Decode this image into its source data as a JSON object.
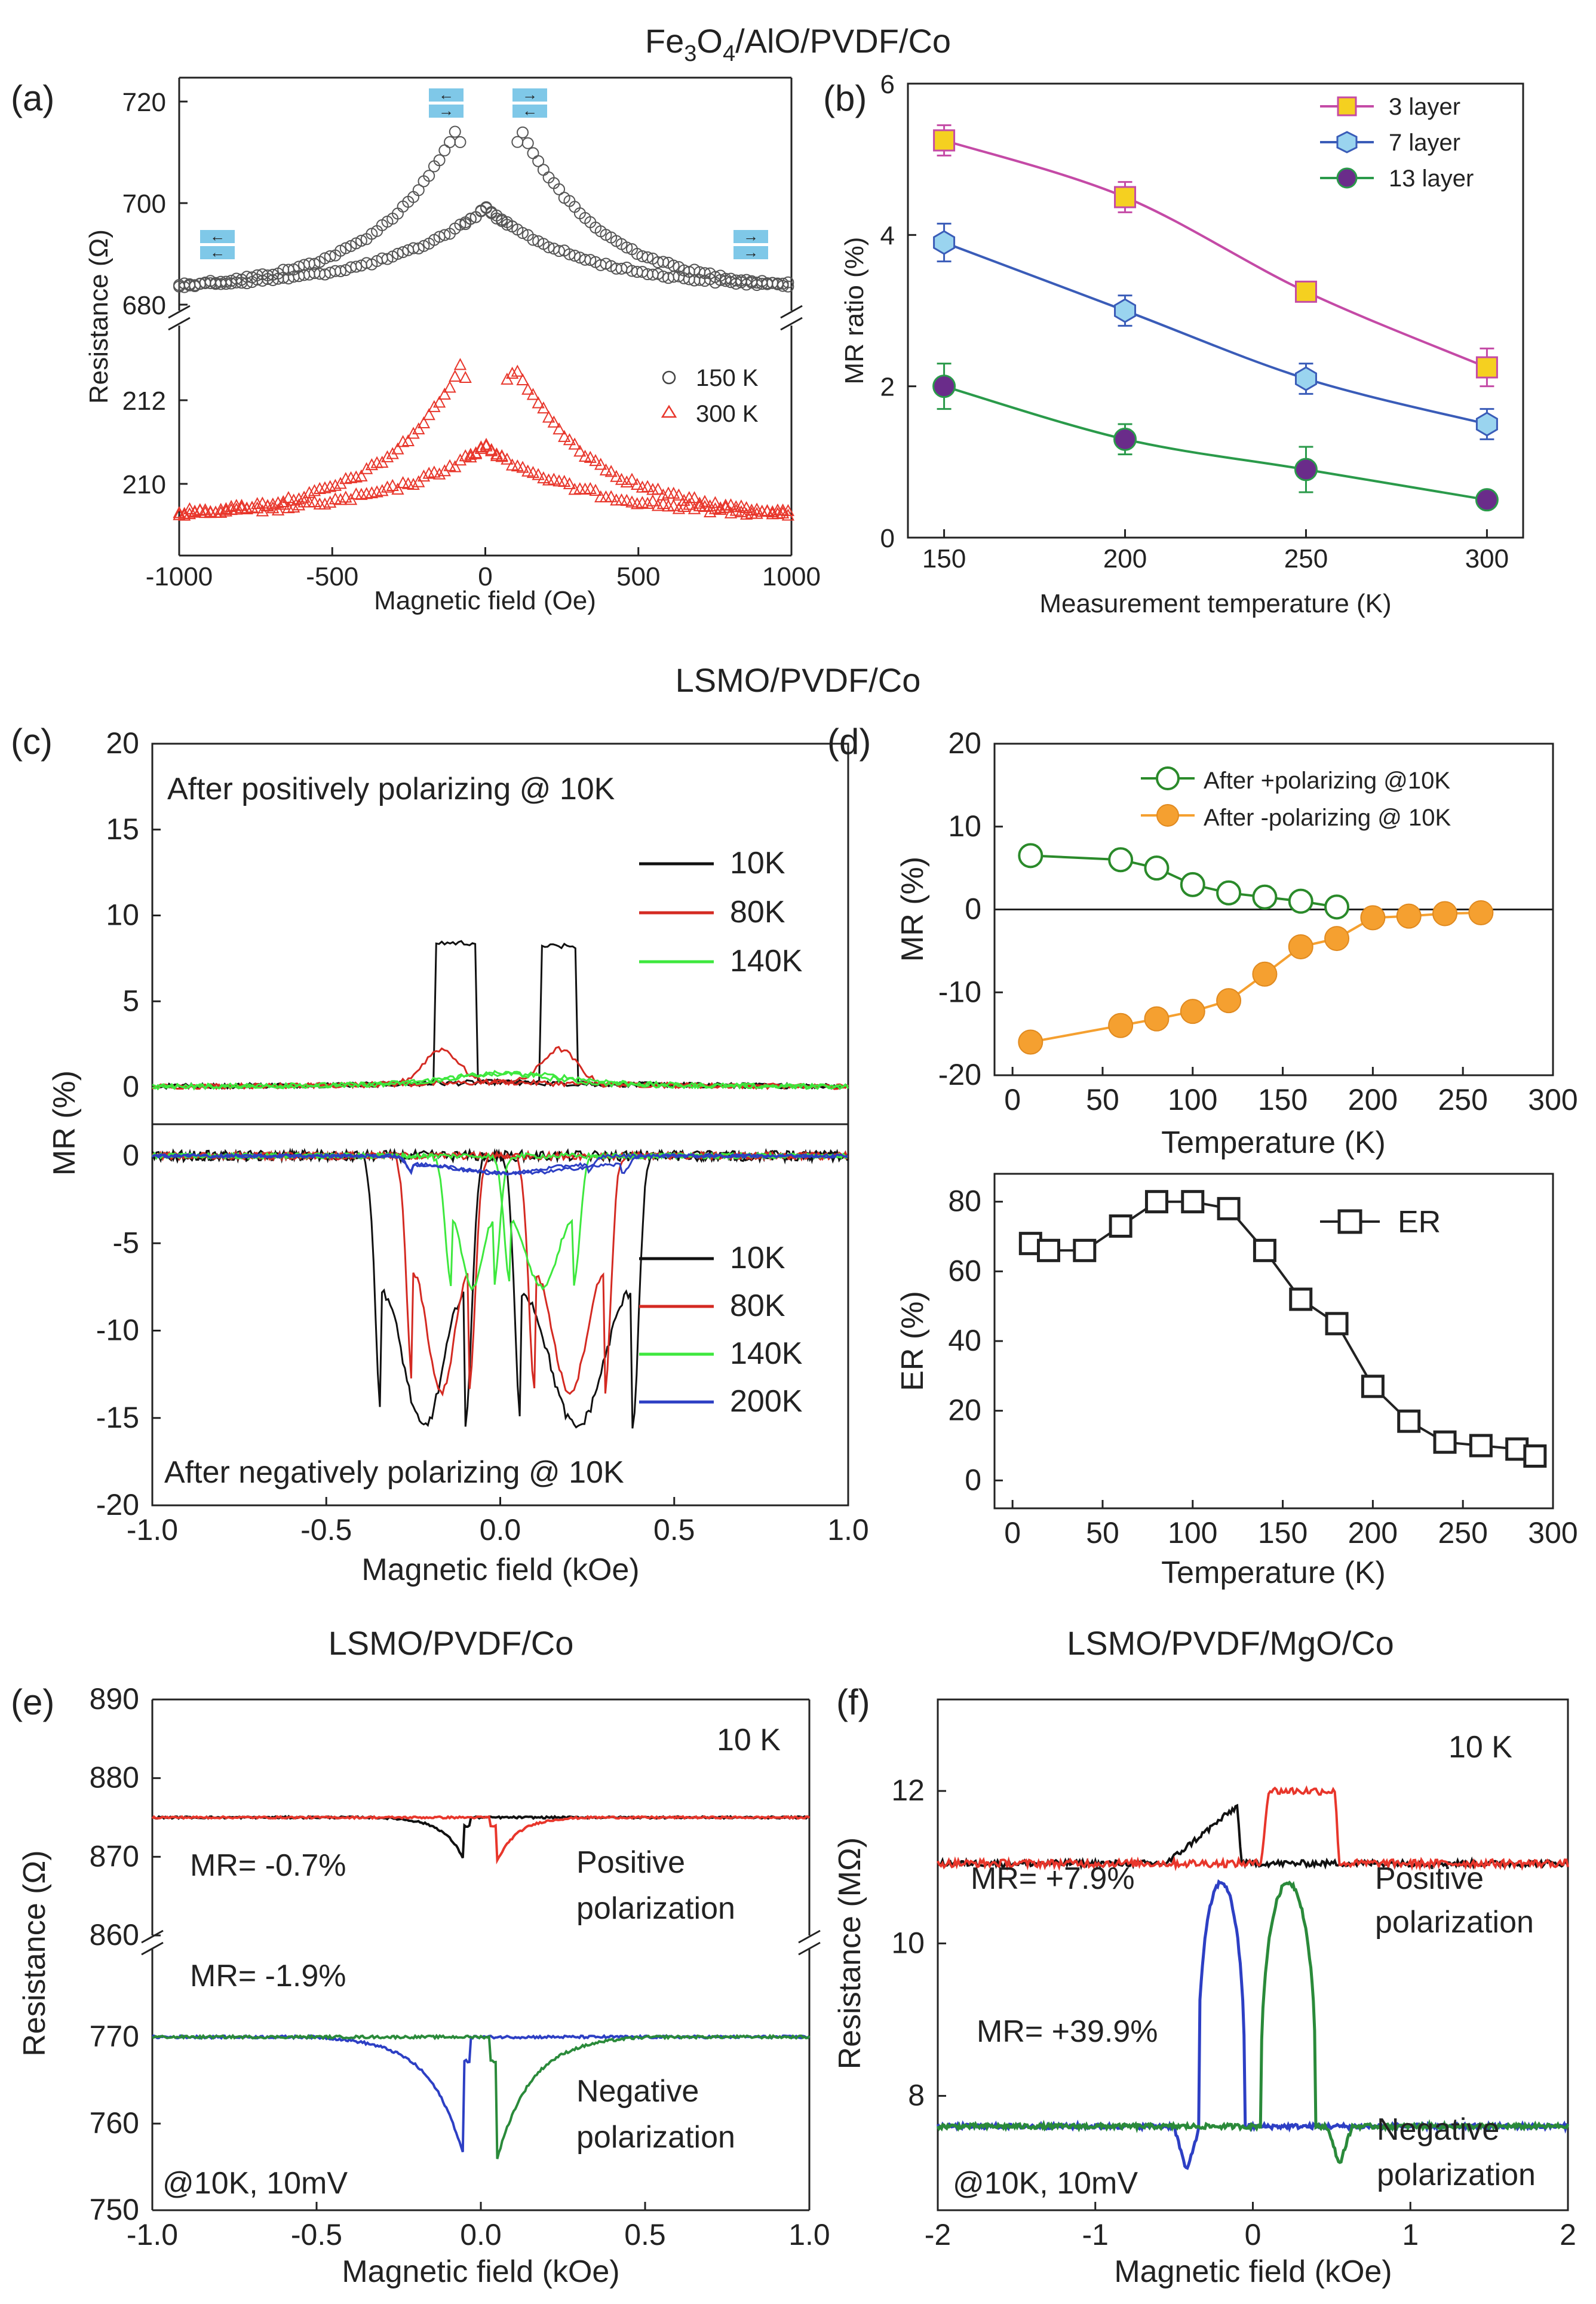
{
  "titles": {
    "top": "Fe3O4/AlO/PVDF/Co",
    "top_main": "Fe",
    "top_sub1": "3",
    "top_mid": "O",
    "top_sub2": "4",
    "top_rest": "/AlO/PVDF/Co",
    "middle": "LSMO/PVDF/Co",
    "e": "LSMO/PVDF/Co",
    "f": "LSMO/PVDF/MgO/Co"
  },
  "panel_labels": {
    "a": "(a)",
    "b": "(b)",
    "c": "(c)",
    "d": "(d)",
    "e": "(e)",
    "f": "(f)"
  },
  "colors": {
    "black": "#222222",
    "red": "#e8362b",
    "green": "#2aa02a",
    "blue": "#2d3fc4",
    "lightgreen": "#3ee83e",
    "magenta": "#c44aa6",
    "yellow": "#f5d020",
    "cyan": "#7fc8e8",
    "purple": "#6a2c8a",
    "orange": "#f5a030"
  },
  "chart_data": [
    {
      "id": "a",
      "type": "scatter",
      "title": "",
      "xlabel": "Magnetic field (Oe)",
      "ylabel": "Resistance (Ω)",
      "xlim": [
        -1000,
        1000
      ],
      "x_ticks": [
        "-1000",
        "-500",
        "0",
        "500",
        "1000"
      ],
      "y_ticks_upper": [
        "720",
        "700",
        "680"
      ],
      "y_ticks_lower": [
        "212",
        "210"
      ],
      "legend": [
        {
          "name": "150 K",
          "marker": "circle",
          "color": "#444444"
        },
        {
          "name": "300 K",
          "marker": "triangle",
          "color": "#e8362b"
        }
      ],
      "series": [
        {
          "name": "150 K",
          "axis": "upper",
          "peak_field": [
            -100,
            120
          ],
          "peak_value": 714,
          "baseline": 683,
          "center_value": 699
        },
        {
          "name": "300 K",
          "axis": "lower",
          "peak_field": [
            -80,
            100
          ],
          "peak_value": 212.8,
          "baseline": 209.2,
          "center_value": 210.9
        }
      ]
    },
    {
      "id": "b",
      "type": "line",
      "xlabel": "Measurement temperature (K)",
      "ylabel": "MR ratio (%)",
      "x": [
        150,
        200,
        250,
        300
      ],
      "xlim": [
        140,
        310
      ],
      "ylim": [
        0,
        6
      ],
      "x_ticks": [
        "150",
        "200",
        "250",
        "300"
      ],
      "y_ticks": [
        "0",
        "2",
        "4",
        "6"
      ],
      "series": [
        {
          "name": "3 layer",
          "values": [
            5.25,
            4.5,
            3.25,
            2.25
          ],
          "errors": [
            0.2,
            0.2,
            0.12,
            0.25
          ]
        },
        {
          "name": "7 layer",
          "values": [
            3.9,
            3.0,
            2.1,
            1.5
          ],
          "errors": [
            0.25,
            0.2,
            0.2,
            0.2
          ]
        },
        {
          "name": "13 layer",
          "values": [
            2.0,
            1.3,
            0.9,
            0.5
          ],
          "errors": [
            0.3,
            0.2,
            0.3,
            0.05
          ]
        }
      ]
    },
    {
      "id": "c",
      "type": "line",
      "xlabel": "Magnetic field (kOe)",
      "ylabel": "MR (%)",
      "xlim": [
        -1.0,
        1.0
      ],
      "ylim": [
        -20,
        20
      ],
      "x_ticks": [
        "-1.0",
        "-0.5",
        "0.0",
        "0.5",
        "1.0"
      ],
      "y_ticks": [
        "20",
        "15",
        "10",
        "5",
        "0",
        "0",
        "-5",
        "-10",
        "-15",
        "-20"
      ],
      "annotation_top": "After positively polarizing @ 10K",
      "annotation_bottom": "After negatively polarizing @ 10K",
      "legend_top": [
        "10K",
        "80K",
        "140K"
      ],
      "legend_bottom": [
        "10K",
        "80K",
        "140K",
        "200K"
      ],
      "series": [
        {
          "name": "10K (+)",
          "peak": 8.3,
          "switch": [
            0.12,
            0.22
          ]
        },
        {
          "name": "80K (+)",
          "peak": 2.2
        },
        {
          "name": "140K (+)",
          "peak": 0.6
        },
        {
          "name": "10K (-)",
          "dip": -15.8,
          "switch": [
            0.22,
            0.42
          ]
        },
        {
          "name": "80K (-)",
          "dip": -14.0,
          "switch": [
            0.1,
            0.35
          ]
        },
        {
          "name": "140K (-)",
          "dip": -7.6,
          "switch": [
            0.05,
            0.22
          ]
        },
        {
          "name": "200K (-)",
          "dip": -1.0
        }
      ]
    },
    {
      "id": "d_top",
      "type": "line",
      "xlabel": "Temperature (K)",
      "ylabel": "MR (%)",
      "xlim": [
        -10,
        300
      ],
      "ylim": [
        -20,
        20
      ],
      "x_ticks": [
        "0",
        "50",
        "100",
        "150",
        "200",
        "250",
        "300"
      ],
      "y_ticks": [
        "20",
        "10",
        "0",
        "-10",
        "-20"
      ],
      "series": [
        {
          "name": "After +polarizing @10K",
          "x": [
            10,
            60,
            80,
            100,
            120,
            140,
            160,
            180
          ],
          "values": [
            6.5,
            6.0,
            5.0,
            3.0,
            2.0,
            1.5,
            1.0,
            0.3
          ]
        },
        {
          "name": "After -polarizing @ 10K",
          "x": [
            10,
            60,
            80,
            100,
            120,
            140,
            160,
            180,
            200,
            220,
            240,
            260
          ],
          "values": [
            -16.0,
            -14.0,
            -13.2,
            -12.3,
            -11.0,
            -7.8,
            -4.5,
            -3.5,
            -1.0,
            -0.8,
            -0.5,
            -0.4
          ]
        }
      ]
    },
    {
      "id": "d_bottom",
      "type": "line",
      "xlabel": "Temperature (K)",
      "ylabel": "ER (%)",
      "xlim": [
        -10,
        300
      ],
      "ylim": [
        -8,
        88
      ],
      "x_ticks": [
        "0",
        "50",
        "100",
        "150",
        "200",
        "250",
        "300"
      ],
      "y_ticks": [
        "80",
        "60",
        "40",
        "20",
        "0"
      ],
      "series": [
        {
          "name": "ER",
          "x": [
            10,
            20,
            40,
            60,
            80,
            100,
            120,
            140,
            160,
            180,
            200,
            220,
            240,
            260,
            280,
            290
          ],
          "values": [
            68,
            66,
            66,
            73,
            80,
            80,
            78,
            66,
            52,
            45,
            27,
            17,
            11,
            10,
            9,
            7
          ]
        }
      ]
    },
    {
      "id": "e",
      "type": "line",
      "xlabel": "Magnetic field (kOe)",
      "ylabel": "Resistance (Ω)",
      "xlim": [
        -1.0,
        1.0
      ],
      "x_ticks": [
        "-1.0",
        "-0.5",
        "0.0",
        "0.5",
        "1.0"
      ],
      "y_ticks_upper": [
        "890",
        "880",
        "870",
        "860"
      ],
      "y_ticks_lower": [
        "770",
        "760",
        "750"
      ],
      "annotations": {
        "temp": "10 K",
        "mr_pos": "MR= -0.7%",
        "mr_neg": "MR= -1.9%",
        "pos_l1": "Positive",
        "pos_l2": "polarization",
        "neg_l1": "Negative",
        "neg_l2": "polarization",
        "cond": "@10K, 10mV"
      },
      "series": [
        {
          "name": "positive (red)",
          "baseline": 875,
          "dip": 869.5
        },
        {
          "name": "positive (black)",
          "baseline": 875,
          "dip": 869.5
        },
        {
          "name": "negative (blue)",
          "baseline": 770,
          "dip": 756
        },
        {
          "name": "negative (green)",
          "baseline": 770,
          "dip": 756
        }
      ]
    },
    {
      "id": "f",
      "type": "line",
      "xlabel": "Magnetic field (kOe)",
      "ylabel": "Resistance (MΩ)",
      "xlim": [
        -2,
        2
      ],
      "ylim": [
        6.5,
        13.2
      ],
      "x_ticks": [
        "-2",
        "-1",
        "0",
        "1",
        "2"
      ],
      "y_ticks": [
        "12",
        "10",
        "8"
      ],
      "annotations": {
        "temp": "10 K",
        "mr_pos": "MR= +7.9%",
        "mr_neg": "MR= +39.9%",
        "pos_l1": "Positive",
        "pos_l2": "polarization",
        "neg_l1": "Negative",
        "neg_l2": "polarization",
        "cond": "@10K, 10mV"
      },
      "series": [
        {
          "name": "positive (black)",
          "baseline": 11.05,
          "peak": 11.8
        },
        {
          "name": "positive (red)",
          "baseline": 11.05,
          "peak": 12.0
        },
        {
          "name": "negative (blue)",
          "baseline": 7.6,
          "peak": 10.8
        },
        {
          "name": "negative (green)",
          "baseline": 7.6,
          "peak": 10.8
        }
      ]
    }
  ]
}
